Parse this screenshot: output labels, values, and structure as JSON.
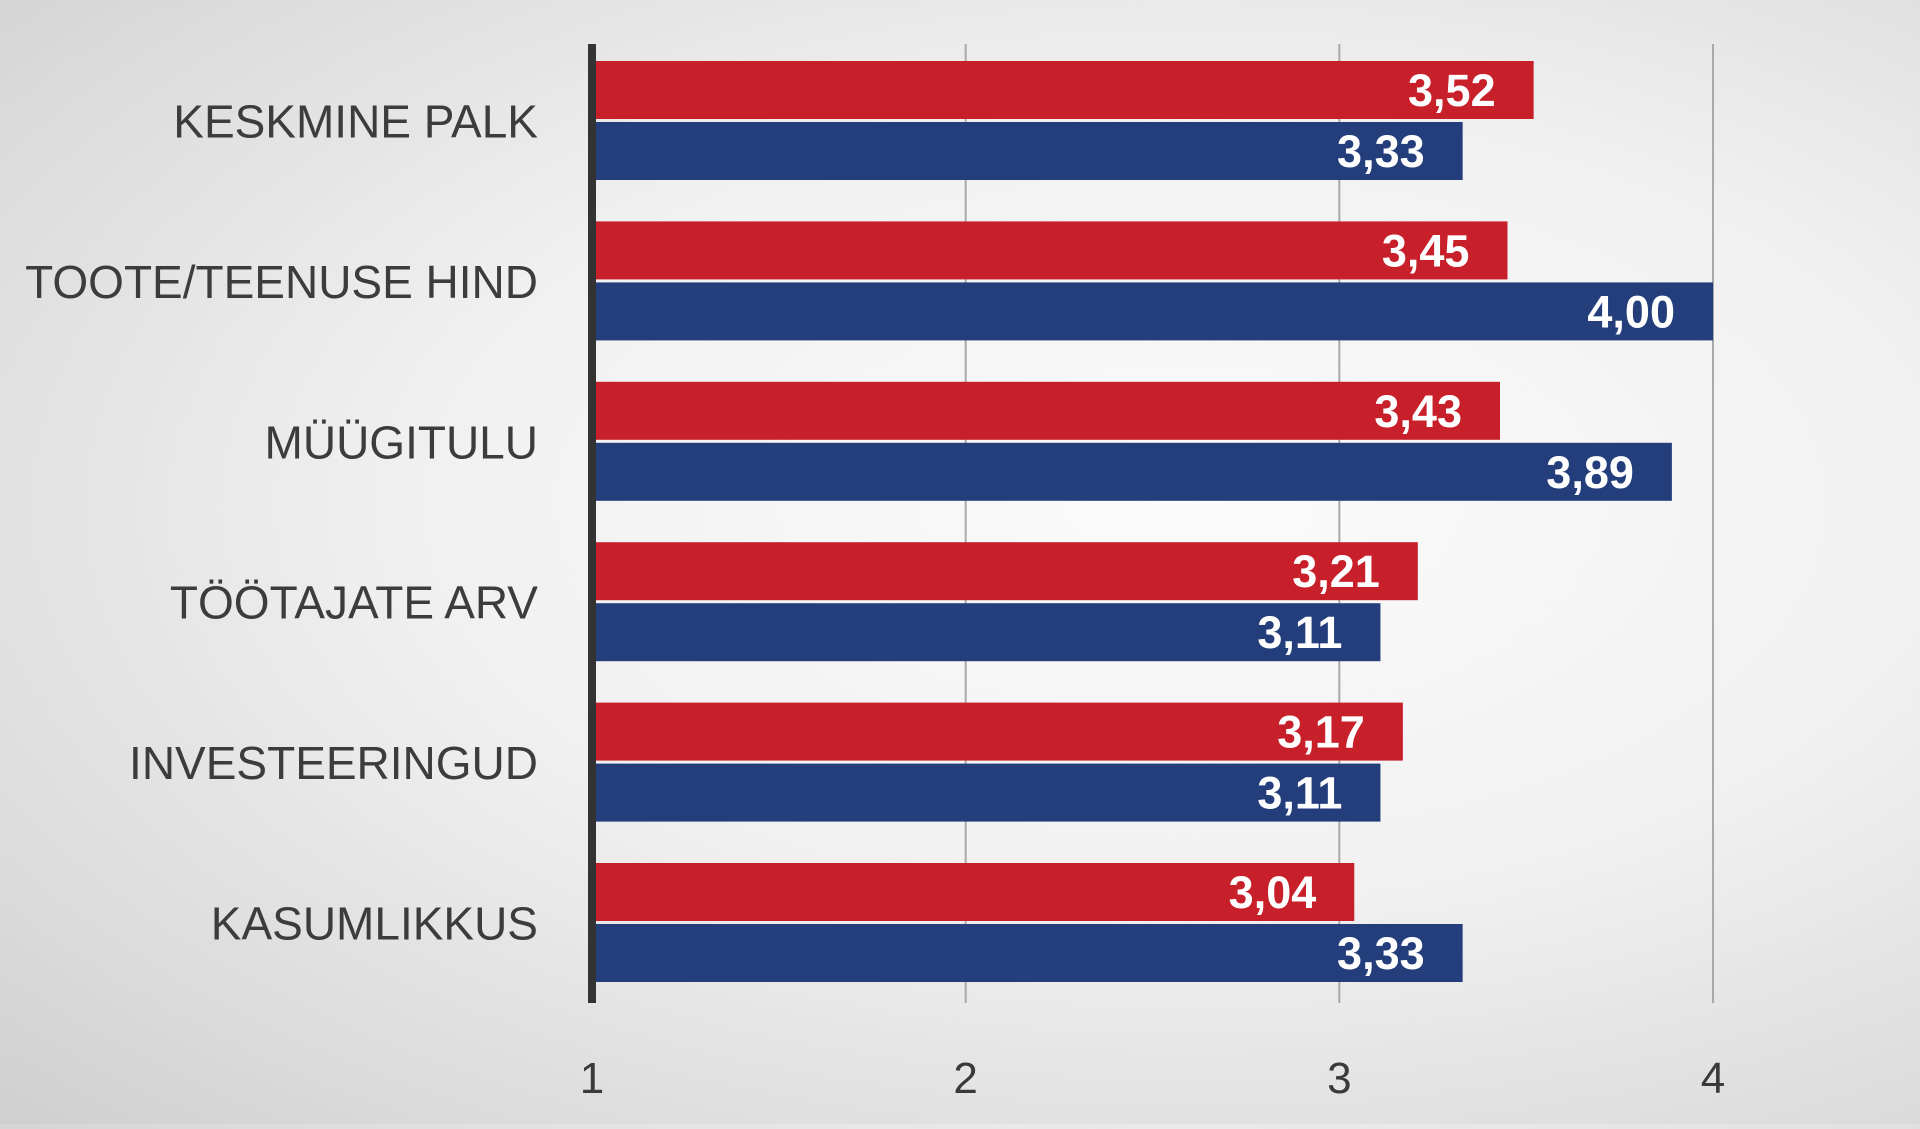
{
  "chart_data": {
    "type": "bar",
    "orientation": "horizontal",
    "categories": [
      "KESKMINE PALK",
      "TOOTE/TEENUSE HIND",
      "MÜÜGITULU",
      "TÖÖTAJATE ARV",
      "INVESTEERINGUD",
      "KASUMLIKKUS"
    ],
    "series": [
      {
        "values": [
          3.52,
          3.45,
          3.43,
          3.21,
          3.17,
          3.04
        ],
        "labels": [
          "3,52",
          "3,45",
          "3,43",
          "3,21",
          "3,17",
          "3,04"
        ],
        "color": "#c8202a"
      },
      {
        "values": [
          3.33,
          4.0,
          3.89,
          3.11,
          3.11,
          3.33
        ],
        "labels": [
          "3,33",
          "4,00",
          "3,89",
          "3,11",
          "3,11",
          "3,33"
        ],
        "color": "#243e7c"
      }
    ],
    "xlim": [
      1,
      4
    ],
    "xticks": [
      1,
      2,
      3,
      4
    ],
    "xtick_labels": [
      "1",
      "2",
      "3",
      "4"
    ],
    "grid": true,
    "legend": false
  }
}
